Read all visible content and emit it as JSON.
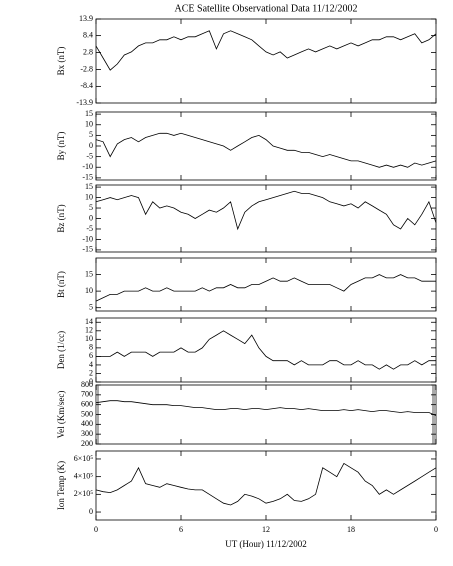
{
  "chart_data": [
    {
      "type": "line",
      "title": "ACE Satellite Observational Data   11/12/2002",
      "y_label": "Bx (nT)",
      "color": "#000000",
      "xlim": [
        0,
        24
      ],
      "ylim": [
        -13.9,
        13.9
      ],
      "yticks": [
        13.9,
        8.4,
        2.8,
        -2.8,
        -8.4,
        -13.9
      ],
      "x": [
        0,
        0.5,
        1,
        1.5,
        2,
        2.5,
        3,
        3.5,
        4,
        4.5,
        5,
        5.5,
        6,
        6.5,
        7,
        7.5,
        8,
        8.5,
        9,
        9.5,
        10,
        10.5,
        11,
        11.5,
        12,
        12.5,
        13,
        13.5,
        14,
        14.5,
        15,
        15.5,
        16,
        16.5,
        17,
        17.5,
        18,
        18.5,
        19,
        19.5,
        20,
        20.5,
        21,
        21.5,
        22,
        22.5,
        23,
        23.5,
        24
      ],
      "values": [
        5,
        1,
        -3,
        -1,
        2,
        3,
        5,
        6,
        6,
        7,
        7,
        8,
        7,
        8,
        8,
        9,
        10,
        4,
        9,
        10,
        9,
        8,
        7,
        5,
        3,
        2,
        3,
        1,
        2,
        3,
        4,
        3,
        4,
        5,
        4,
        5,
        6,
        5,
        6,
        7,
        7,
        8,
        8,
        7,
        8,
        9,
        6,
        7,
        9
      ]
    },
    {
      "type": "line",
      "y_label": "By (nT)",
      "color": "#000000",
      "xlim": [
        0,
        24
      ],
      "ylim": [
        -16,
        16
      ],
      "yticks": [
        15,
        10,
        5,
        0,
        -5,
        -10,
        -15
      ],
      "x": [
        0,
        0.5,
        1,
        1.5,
        2,
        2.5,
        3,
        3.5,
        4,
        4.5,
        5,
        5.5,
        6,
        6.5,
        7,
        7.5,
        8,
        8.5,
        9,
        9.5,
        10,
        10.5,
        11,
        11.5,
        12,
        12.5,
        13,
        13.5,
        14,
        14.5,
        15,
        15.5,
        16,
        16.5,
        17,
        17.5,
        18,
        18.5,
        19,
        19.5,
        20,
        20.5,
        21,
        21.5,
        22,
        22.5,
        23,
        23.5,
        24
      ],
      "values": [
        3,
        2,
        -5,
        1,
        3,
        4,
        2,
        4,
        5,
        6,
        6,
        5,
        6,
        5,
        4,
        3,
        2,
        1,
        0,
        -2,
        0,
        2,
        4,
        5,
        3,
        0,
        -1,
        -2,
        -2,
        -3,
        -3,
        -4,
        -5,
        -4,
        -5,
        -6,
        -7,
        -7,
        -8,
        -9,
        -10,
        -9,
        -10,
        -9,
        -10,
        -8,
        -9,
        -8,
        -7
      ]
    },
    {
      "type": "line",
      "y_label": "Bz (nT)",
      "color": "#000000",
      "xlim": [
        0,
        24
      ],
      "ylim": [
        -16,
        16
      ],
      "yticks": [
        15,
        10,
        5,
        0,
        -5,
        -10,
        -15
      ],
      "x": [
        0,
        0.5,
        1,
        1.5,
        2,
        2.5,
        3,
        3.5,
        4,
        4.5,
        5,
        5.5,
        6,
        6.5,
        7,
        7.5,
        8,
        8.5,
        9,
        9.5,
        10,
        10.5,
        11,
        11.5,
        12,
        12.5,
        13,
        13.5,
        14,
        14.5,
        15,
        15.5,
        16,
        16.5,
        17,
        17.5,
        18,
        18.5,
        19,
        19.5,
        20,
        20.5,
        21,
        21.5,
        22,
        22.5,
        23,
        23.5,
        24
      ],
      "values": [
        8,
        9,
        10,
        9,
        10,
        11,
        10,
        2,
        8,
        5,
        6,
        5,
        3,
        2,
        0,
        2,
        4,
        3,
        5,
        8,
        -5,
        3,
        6,
        8,
        9,
        10,
        11,
        12,
        13,
        12,
        12,
        11,
        10,
        8,
        7,
        6,
        7,
        5,
        8,
        6,
        4,
        2,
        -3,
        -5,
        0,
        -3,
        2,
        8,
        -2
      ]
    },
    {
      "type": "line",
      "y_label": "Bt (nT)",
      "color": "#000000",
      "xlim": [
        0,
        24
      ],
      "ylim": [
        4,
        20
      ],
      "yticks": [
        15,
        10,
        5
      ],
      "x": [
        0,
        0.5,
        1,
        1.5,
        2,
        2.5,
        3,
        3.5,
        4,
        4.5,
        5,
        5.5,
        6,
        6.5,
        7,
        7.5,
        8,
        8.5,
        9,
        9.5,
        10,
        10.5,
        11,
        11.5,
        12,
        12.5,
        13,
        13.5,
        14,
        14.5,
        15,
        15.5,
        16,
        16.5,
        17,
        17.5,
        18,
        18.5,
        19,
        19.5,
        20,
        20.5,
        21,
        21.5,
        22,
        22.5,
        23,
        23.5,
        24
      ],
      "values": [
        7,
        8,
        9,
        9,
        10,
        10,
        10,
        11,
        10,
        10,
        11,
        10,
        10,
        10,
        10,
        11,
        10,
        11,
        11,
        12,
        11,
        11,
        12,
        12,
        13,
        14,
        13,
        13,
        14,
        13,
        12,
        12,
        12,
        12,
        11,
        10,
        12,
        13,
        14,
        14,
        15,
        14,
        14,
        15,
        14,
        14,
        13,
        13,
        13
      ]
    },
    {
      "type": "line",
      "y_label": "Den (1/cc)",
      "color": "#000000",
      "xlim": [
        0,
        24
      ],
      "ylim": [
        0,
        15
      ],
      "yticks": [
        14,
        12,
        10,
        8,
        6,
        4,
        2,
        0
      ],
      "x": [
        0,
        0.5,
        1,
        1.5,
        2,
        2.5,
        3,
        3.5,
        4,
        4.5,
        5,
        5.5,
        6,
        6.5,
        7,
        7.5,
        8,
        8.5,
        9,
        9.5,
        10,
        10.5,
        11,
        11.5,
        12,
        12.5,
        13,
        13.5,
        14,
        14.5,
        15,
        15.5,
        16,
        16.5,
        17,
        17.5,
        18,
        18.5,
        19,
        19.5,
        20,
        20.5,
        21,
        21.5,
        22,
        22.5,
        23,
        23.5,
        24
      ],
      "values": [
        6,
        6,
        6,
        7,
        6,
        7,
        7,
        7,
        6,
        7,
        7,
        7,
        8,
        7,
        7,
        8,
        10,
        11,
        12,
        11,
        10,
        9,
        11,
        8,
        6,
        5,
        5,
        5,
        4,
        5,
        4,
        4,
        4,
        5,
        5,
        4,
        4,
        5,
        4,
        4,
        3,
        4,
        3,
        4,
        4,
        5,
        4,
        5,
        5
      ]
    },
    {
      "type": "line",
      "y_label": "Vel (Km/sec)",
      "color": "#000000",
      "xlim": [
        0,
        24
      ],
      "ylim": [
        200,
        800
      ],
      "yticks": [
        800,
        700,
        600,
        500,
        400,
        300,
        200
      ],
      "x": [
        0,
        0.5,
        1,
        1.5,
        2,
        2.5,
        3,
        3.5,
        4,
        4.5,
        5,
        5.5,
        6,
        6.5,
        7,
        7.5,
        8,
        8.5,
        9,
        9.5,
        10,
        10.5,
        11,
        11.5,
        12,
        12.5,
        13,
        13.5,
        14,
        14.5,
        15,
        15.5,
        16,
        16.5,
        17,
        17.5,
        18,
        18.5,
        19,
        19.5,
        20,
        20.5,
        21,
        21.5,
        22,
        22.5,
        23,
        23.5,
        24
      ],
      "values": [
        620,
        630,
        640,
        640,
        630,
        630,
        620,
        610,
        600,
        600,
        600,
        590,
        590,
        580,
        570,
        570,
        560,
        550,
        550,
        560,
        560,
        550,
        560,
        560,
        550,
        560,
        570,
        560,
        560,
        550,
        560,
        550,
        540,
        540,
        540,
        550,
        540,
        550,
        540,
        530,
        540,
        540,
        530,
        520,
        530,
        520,
        520,
        520,
        490
      ]
    },
    {
      "type": "line",
      "y_label": "Ion Temp (K)",
      "x_label": "UT (Hour)   11/12/2002",
      "color": "#000000",
      "xlim": [
        0,
        24
      ],
      "ylim": [
        -90000,
        690000
      ],
      "yticks": [
        {
          "value": 600000,
          "label": "6×10⁵"
        },
        {
          "value": 400000,
          "label": "4×10⁵"
        },
        {
          "value": 200000,
          "label": "2×10⁵"
        },
        0
      ],
      "xticks": [
        0,
        6,
        12,
        18,
        {
          "value": 24,
          "label": "0"
        }
      ],
      "x": [
        0,
        0.5,
        1,
        1.5,
        2,
        2.5,
        3,
        3.5,
        4,
        4.5,
        5,
        5.5,
        6,
        6.5,
        7,
        7.5,
        8,
        8.5,
        9,
        9.5,
        10,
        10.5,
        11,
        11.5,
        12,
        12.5,
        13,
        13.5,
        14,
        14.5,
        15,
        15.5,
        16,
        16.5,
        17,
        17.5,
        18,
        18.5,
        19,
        19.5,
        20,
        20.5,
        21,
        21.5,
        22,
        22.5,
        23,
        23.5,
        24
      ],
      "values": [
        250000,
        230000,
        220000,
        250000,
        300000,
        350000,
        500000,
        320000,
        300000,
        280000,
        320000,
        300000,
        280000,
        260000,
        250000,
        250000,
        200000,
        150000,
        100000,
        80000,
        120000,
        200000,
        180000,
        150000,
        100000,
        120000,
        150000,
        200000,
        130000,
        120000,
        150000,
        200000,
        500000,
        450000,
        400000,
        550000,
        500000,
        450000,
        350000,
        300000,
        200000,
        250000,
        200000,
        250000,
        300000,
        350000,
        400000,
        450000,
        500000
      ]
    }
  ]
}
